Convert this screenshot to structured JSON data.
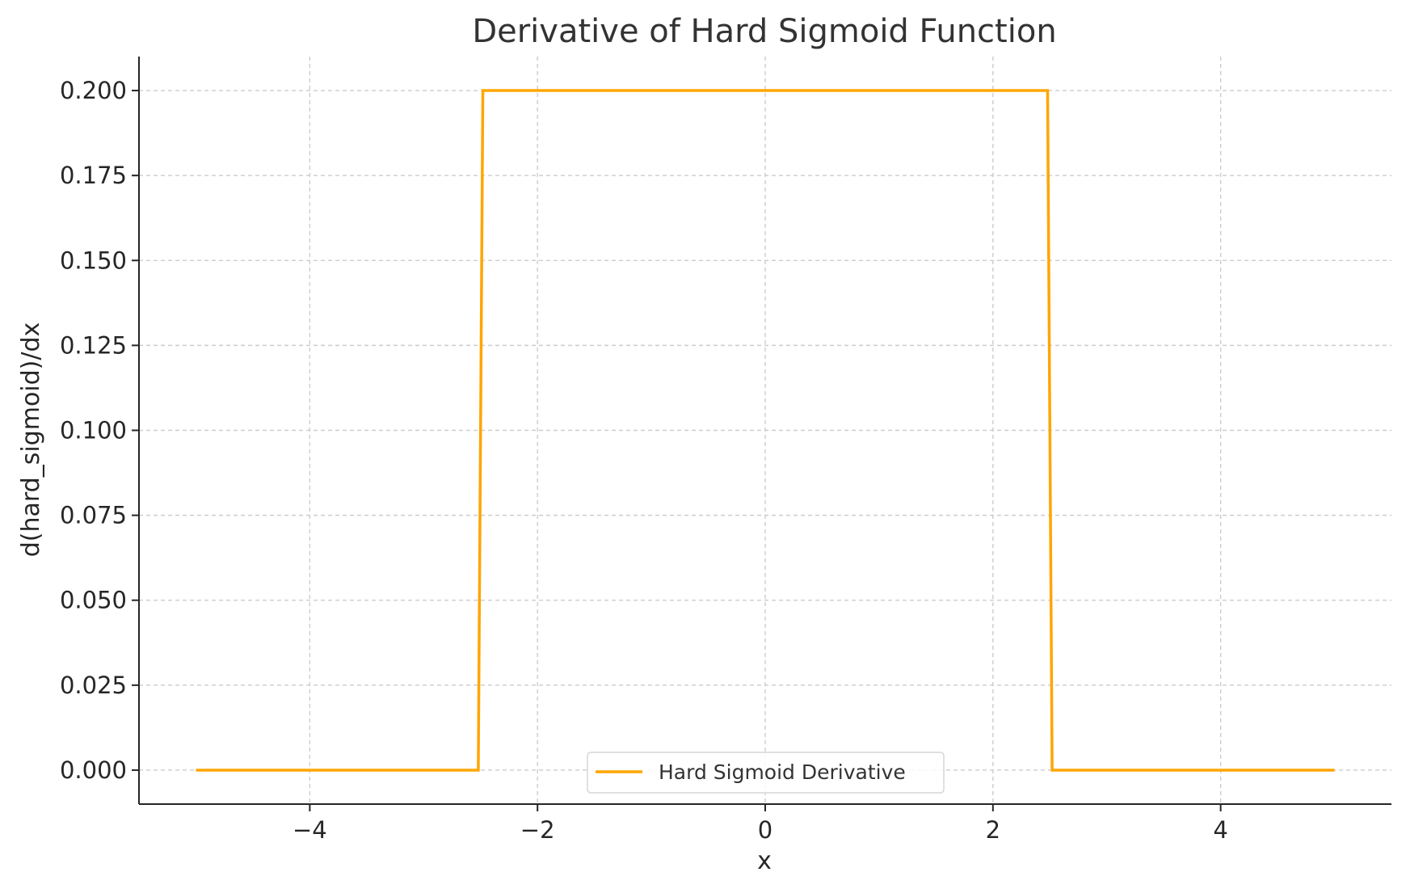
{
  "chart_data": {
    "type": "line",
    "title": "Derivative of Hard Sigmoid Function",
    "xlabel": "x",
    "ylabel": "d(hard_sigmoid)/dx",
    "xlim": [
      -5.5,
      5.5
    ],
    "ylim": [
      -0.01,
      0.21
    ],
    "x_ticks": [
      -4,
      -2,
      0,
      2,
      4
    ],
    "x_tick_labels": [
      "−4",
      "−2",
      "0",
      "2",
      "4"
    ],
    "y_ticks": [
      0.0,
      0.025,
      0.05,
      0.075,
      0.1,
      0.125,
      0.15,
      0.175,
      0.2
    ],
    "y_tick_labels": [
      "0.000",
      "0.025",
      "0.050",
      "0.075",
      "0.100",
      "0.125",
      "0.150",
      "0.175",
      "0.200"
    ],
    "grid": true,
    "legend_position": "bottom-center",
    "series": [
      {
        "name": "Hard Sigmoid Derivative",
        "color": "#FFA500",
        "x": [
          -5,
          -2.52,
          -2.48,
          2.48,
          2.52,
          5
        ],
        "y": [
          0,
          0,
          0.2,
          0.2,
          0,
          0
        ]
      }
    ]
  }
}
